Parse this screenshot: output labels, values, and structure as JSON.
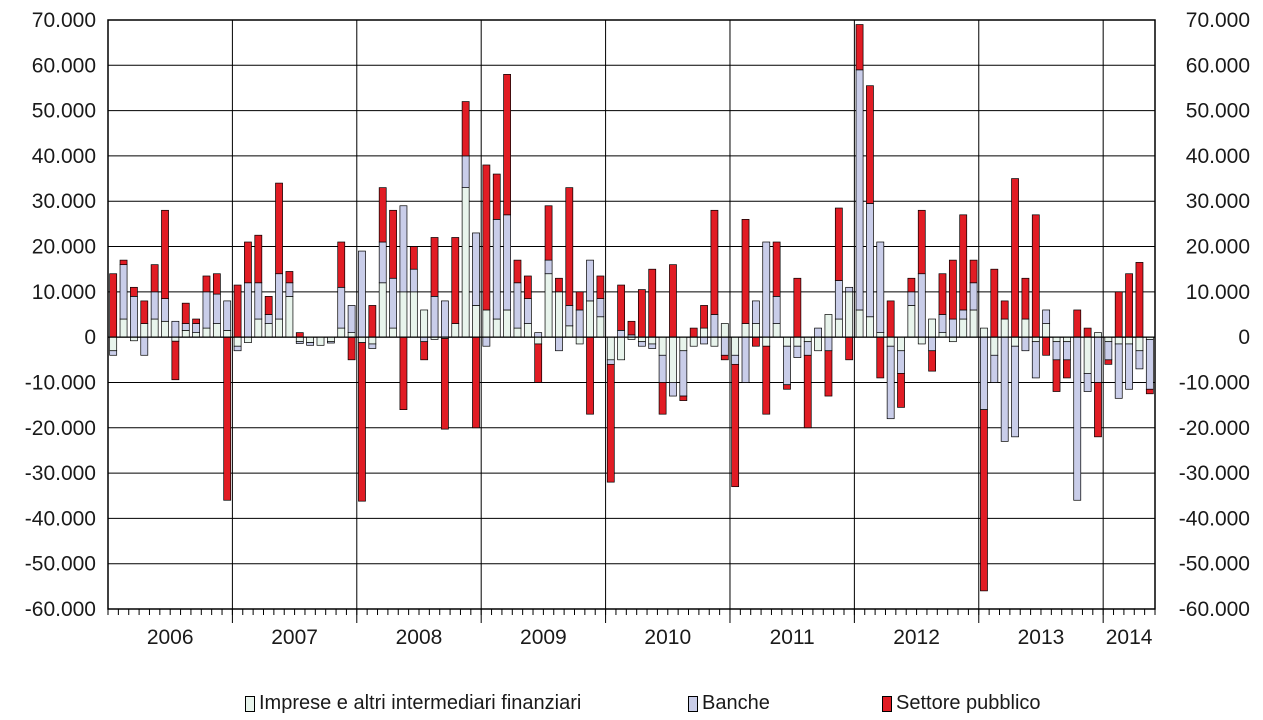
{
  "chart_data": {
    "type": "bar",
    "stacked": true,
    "ylim": [
      -60000,
      70000
    ],
    "yticks": [
      70000,
      60000,
      50000,
      40000,
      30000,
      20000,
      10000,
      0,
      -10000,
      -20000,
      -30000,
      -40000,
      -50000,
      -60000
    ],
    "ytick_labels": [
      "70.000",
      "60.000",
      "50.000",
      "40.000",
      "30.000",
      "20.000",
      "10.000",
      "0",
      "-10.000",
      "-20.000",
      "-30.000",
      "-40.000",
      "-50.000",
      "-60.000"
    ],
    "grid": true,
    "start_month": "2006-01",
    "months_count": 101,
    "year_labels": [
      "2006",
      "2007",
      "2008",
      "2009",
      "2010",
      "2011",
      "2012",
      "2013",
      "2014"
    ],
    "series": [
      {
        "name": "Imprese e altri intermediari finanziari",
        "color": "#e8f4ec",
        "values": [
          -3000,
          4000,
          -800,
          3000,
          4000,
          3500,
          -900,
          1500,
          1000,
          2000,
          3000,
          1500,
          -2000,
          -1200,
          4000,
          3000,
          4000,
          9000,
          -1000,
          -1200,
          -1800,
          -1000,
          2000,
          1000,
          -1200,
          -1500,
          12000,
          2000,
          10000,
          10000,
          6000,
          -500,
          -300,
          3000,
          33000,
          7000,
          6000,
          4000,
          6000,
          2000,
          3000,
          -1500,
          14000,
          10000,
          2500,
          -1500,
          8000,
          4500,
          -5000,
          -5000,
          -500,
          -1000,
          -1500,
          -4000,
          -10000,
          -3000,
          -2000,
          2000,
          -2000,
          3000,
          -4000,
          3000,
          3000,
          -2000,
          3000,
          -2000,
          -2000,
          -1000,
          -3000,
          5000,
          4000,
          10000,
          6000,
          4500,
          1000,
          -2000,
          -3000,
          7000,
          -1500,
          4000,
          1000,
          -1000,
          4000,
          6000,
          2000,
          -4000,
          4000,
          -2000,
          4000,
          -1000,
          3000,
          -1000,
          -1000,
          0,
          -8000,
          1000,
          -1000,
          -1500,
          -1500,
          -3000,
          -500
        ]
      },
      {
        "name": "Banche",
        "color": "#c9cde9",
        "values": [
          -1000,
          12000,
          9000,
          -4000,
          6000,
          5000,
          3500,
          1500,
          2000,
          8000,
          6500,
          6500,
          -1000,
          12000,
          8000,
          2000,
          10000,
          3000,
          -400,
          -600,
          0,
          -300,
          9000,
          6000,
          19000,
          -1000,
          9000,
          11000,
          19000,
          5000,
          -1000,
          9000,
          8000,
          0,
          7000,
          16000,
          -2000,
          22000,
          21000,
          10000,
          5500,
          1000,
          3000,
          -3000,
          4500,
          6000,
          9000,
          4000,
          -1000,
          1500,
          500,
          -1000,
          -1000,
          -6000,
          -3000,
          -10000,
          0,
          -1500,
          5000,
          -4000,
          -2000,
          -10000,
          5000,
          21000,
          6000,
          -8500,
          -2500,
          -3000,
          2000,
          -3000,
          8500,
          1000,
          53000,
          25000,
          20000,
          -16000,
          -5000,
          3000,
          14000,
          -3000,
          4000,
          4000,
          2000,
          6000,
          -16000,
          -6000,
          -23000,
          -20000,
          -3000,
          -8000,
          3000,
          -4000,
          -4000,
          -36000,
          -4000,
          -10000,
          -4000,
          -12000,
          -10000,
          -4000,
          -11000
        ]
      },
      {
        "name": "Settore pubblico",
        "color": "#e11c24",
        "values": [
          14000,
          1000,
          2000,
          5000,
          6000,
          19500,
          -8500,
          4500,
          1000,
          3500,
          4500,
          -36000,
          11500,
          9000,
          10500,
          4000,
          20000,
          2500,
          1000,
          0,
          0,
          0,
          10000,
          -5000,
          -35000,
          7000,
          12000,
          15000,
          -16000,
          5000,
          -4000,
          13000,
          -20000,
          19000,
          12000,
          -20000,
          32000,
          10000,
          31000,
          5000,
          5000,
          -8500,
          12000,
          3000,
          26000,
          4000,
          -17000,
          5000,
          -26000,
          10000,
          3000,
          10500,
          15000,
          -7000,
          16000,
          -1000,
          2000,
          5000,
          23000,
          -1000,
          -27000,
          23000,
          -2000,
          -15000,
          12000,
          -1000,
          13000,
          -16000,
          0,
          -10000,
          16000,
          -5000,
          10000,
          26000,
          -9000,
          8000,
          -7500,
          3000,
          14000,
          -4500,
          9000,
          13000,
          21000,
          5000,
          -40000,
          15000,
          4000,
          35000,
          9000,
          27000,
          -4000,
          -7000,
          -4000,
          6000,
          2000,
          -12000,
          -1000,
          10000,
          14000,
          16500,
          -1000
        ]
      }
    ],
    "legend_position": "bottom"
  }
}
